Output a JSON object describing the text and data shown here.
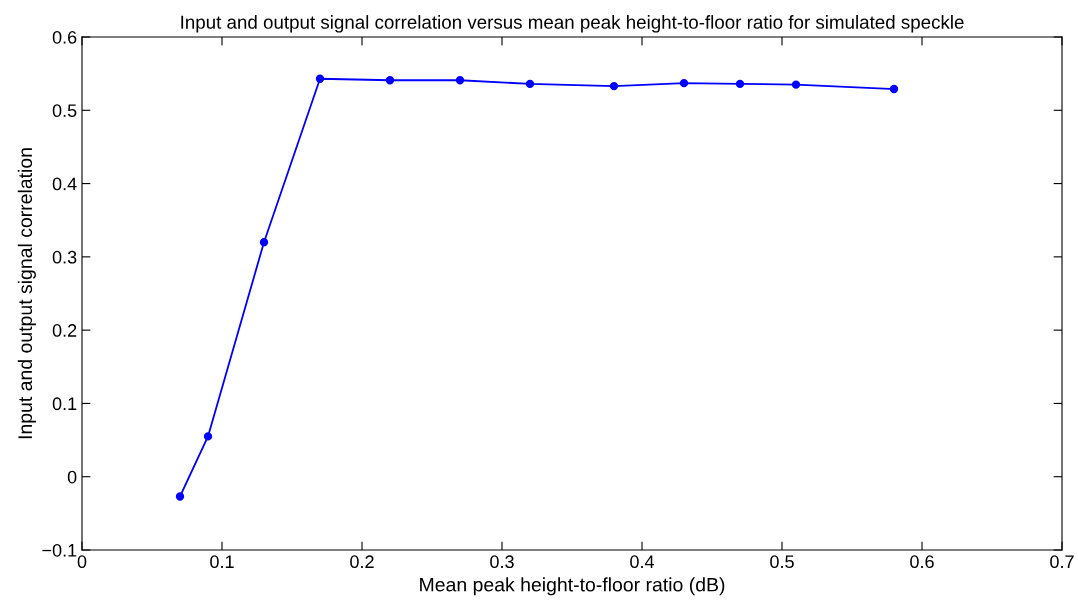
{
  "chart_data": {
    "type": "line",
    "title": "Input and output signal correlation versus mean peak height-to-floor ratio for simulated speckle",
    "xlabel": "Mean peak height-to-floor ratio (dB)",
    "ylabel": "Input and output signal correlation",
    "x": [
      0.07,
      0.09,
      0.13,
      0.17,
      0.22,
      0.27,
      0.32,
      0.38,
      0.43,
      0.47,
      0.51,
      0.58
    ],
    "series": [
      {
        "color": "#0000ff",
        "values": [
          -0.027,
          0.055,
          0.32,
          0.543,
          0.541,
          0.541,
          0.536,
          0.533,
          0.537,
          0.536,
          0.535,
          0.529
        ]
      }
    ],
    "marker": "circle",
    "line_style": "solid",
    "grid": false,
    "legend": false,
    "xlim": [
      0,
      0.7
    ],
    "xticks": [
      0,
      0.1,
      0.2,
      0.3,
      0.4,
      0.5,
      0.6,
      0.7
    ],
    "ylim": [
      -0.1,
      0.6
    ],
    "yticks": [
      {
        "value": -0.1,
        "label": "−0.1"
      },
      0,
      0.1,
      0.2,
      0.3,
      0.4,
      0.5,
      0.6
    ]
  }
}
